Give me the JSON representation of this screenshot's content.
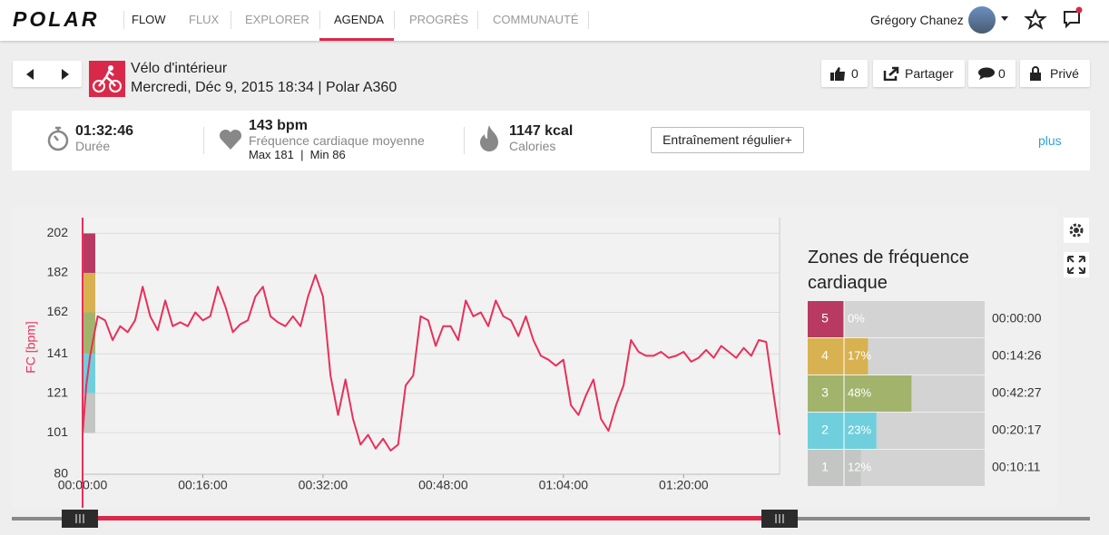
{
  "nav": {
    "logo": "POLAR",
    "app": "FLOW",
    "items": [
      "FLUX",
      "EXPLORER",
      "AGENDA",
      "PROGRÈS",
      "COMMUNAUTÉ"
    ],
    "user": "Grégory Chanez"
  },
  "session": {
    "sport": "Vélo d'intérieur",
    "date": "Mercredi, Déc 9, 2015 18:34 | Polar A360",
    "likes": "0",
    "share": "Partager",
    "comments": "0",
    "privacy": "Privé"
  },
  "summary": {
    "duration": "01:32:46",
    "duration_label": "Durée",
    "hr": "143 bpm",
    "hr_label": "Fréquence cardiaque moyenne",
    "hr_minmax": "Max 181  |  Min 86",
    "calories": "1147 kcal",
    "calories_label": "Calories",
    "benefit": "Entraînement régulier+",
    "more": "plus"
  },
  "chart_data": {
    "type": "line",
    "y_label": "FC [bpm]",
    "color": "#e8305a",
    "x": [
      0,
      0.5,
      1,
      2,
      3,
      4,
      5,
      6,
      7,
      8,
      9,
      10,
      11,
      12,
      13,
      14,
      15,
      16,
      17,
      18,
      19,
      20,
      21,
      22,
      23,
      24,
      25,
      26,
      27,
      28,
      29,
      30,
      31,
      32,
      33,
      34,
      35,
      36,
      37,
      38,
      39,
      40,
      41,
      42,
      43,
      44,
      45,
      46,
      47,
      48,
      49,
      50,
      51,
      52,
      53,
      54,
      55,
      56,
      57,
      58,
      59,
      60,
      61,
      62,
      63,
      64,
      65,
      66,
      67,
      68,
      69,
      70,
      71,
      72,
      73,
      74,
      75,
      76,
      77,
      78,
      79,
      80,
      81,
      82,
      83,
      84,
      85,
      86,
      87,
      88,
      89,
      90,
      91,
      92,
      92.77
    ],
    "values": [
      100,
      125,
      140,
      160,
      158,
      148,
      155,
      152,
      158,
      175,
      160,
      153,
      168,
      155,
      157,
      155,
      162,
      158,
      160,
      175,
      165,
      152,
      156,
      158,
      170,
      175,
      160,
      157,
      155,
      160,
      155,
      170,
      181,
      170,
      130,
      110,
      128,
      108,
      95,
      100,
      93,
      98,
      92,
      95,
      125,
      130,
      160,
      158,
      145,
      155,
      155,
      148,
      168,
      160,
      162,
      155,
      168,
      160,
      158,
      150,
      160,
      148,
      140,
      138,
      135,
      138,
      115,
      110,
      120,
      128,
      108,
      102,
      115,
      125,
      148,
      142,
      140,
      140,
      142,
      139,
      140,
      142,
      137,
      139,
      143,
      139,
      145,
      142,
      139,
      144,
      140,
      148,
      147,
      120,
      100
    ],
    "xlim": [
      0,
      92.77
    ],
    "xticks": [
      {
        "value": 0,
        "label": "00:00:00"
      },
      {
        "value": 16,
        "label": "00:16:00"
      },
      {
        "value": 32,
        "label": "00:32:00"
      },
      {
        "value": 48,
        "label": "00:48:00"
      },
      {
        "value": 64,
        "label": "01:04:00"
      },
      {
        "value": 80,
        "label": "01:20:00"
      }
    ],
    "ylim": [
      80,
      210
    ],
    "yticks": [
      80,
      101,
      121,
      141,
      162,
      182,
      202
    ],
    "grid": true
  },
  "zones": {
    "title": "Zones de fréquence cardiaque",
    "names": [
      "5",
      "4",
      "3",
      "2",
      "1"
    ],
    "values": [
      0,
      17,
      48,
      23,
      12
    ],
    "value_labels": [
      "0%",
      "17%",
      "48%",
      "23%",
      "12%"
    ],
    "times": [
      "00:00:00",
      "00:14:26",
      "00:42:27",
      "00:20:17",
      "00:10:11"
    ],
    "colors": [
      "#b83a63",
      "#d8b150",
      "#a2b46c",
      "#6fcfdc",
      "#c3c6c3"
    ],
    "bands": [
      [
        182,
        202
      ],
      [
        162,
        182
      ],
      [
        141,
        162
      ],
      [
        121,
        141
      ],
      [
        101,
        121
      ]
    ]
  }
}
